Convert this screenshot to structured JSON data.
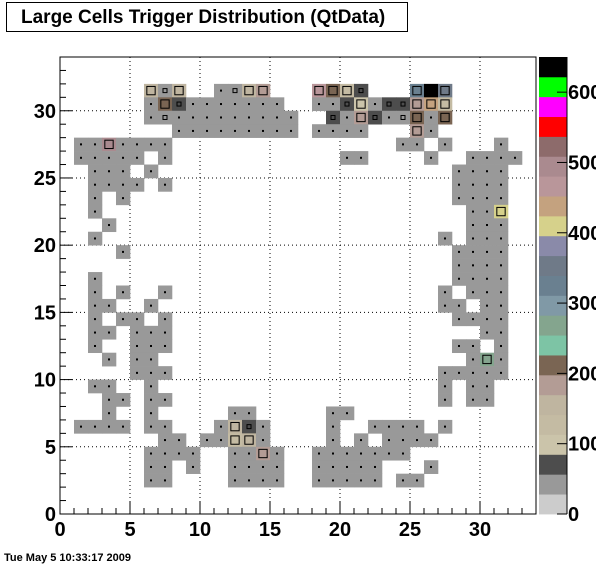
{
  "chart_data": {
    "type": "heatmap",
    "title": "Large Cells Trigger Distribution (QtData)",
    "xlim": [
      0,
      34
    ],
    "ylim": [
      0,
      34
    ],
    "x_ticks": [
      0,
      5,
      10,
      15,
      20,
      25,
      30
    ],
    "y_ticks": [
      0,
      5,
      10,
      15,
      20,
      25,
      30
    ],
    "z_ticks": [
      0,
      100,
      200,
      300,
      400,
      500,
      600
    ],
    "z_max": 650,
    "grid": true,
    "palette": [
      "#cccccc",
      "#999999",
      "#4d4d4d",
      "#cbc4aa",
      "#c4bba3",
      "#bfb5a0",
      "#b39c95",
      "#7a6553",
      "#7dc4a5",
      "#84a58e",
      "#8099a6",
      "#6a8090",
      "#6f7a88",
      "#8a8aa9",
      "#d6d18b",
      "#c4a27f",
      "#b9969a",
      "#aa8a8f",
      "#8d6b6b",
      "#ff0000",
      "#ff00ff",
      "#00ff00",
      "#000000"
    ],
    "cells": [
      [
        6,
        31,
        150
      ],
      [
        7,
        31,
        50
      ],
      [
        8,
        31,
        150
      ],
      [
        11,
        31,
        30
      ],
      [
        12,
        31,
        50
      ],
      [
        13,
        31,
        160
      ],
      [
        14,
        31,
        190
      ],
      [
        18,
        31,
        480
      ],
      [
        19,
        31,
        220
      ],
      [
        20,
        31,
        140
      ],
      [
        21,
        31,
        60
      ],
      [
        25,
        31,
        320
      ],
      [
        26,
        31,
        640
      ],
      [
        27,
        31,
        340
      ],
      [
        6,
        30,
        40
      ],
      [
        7,
        30,
        200
      ],
      [
        8,
        30,
        60
      ],
      [
        9,
        30,
        40
      ],
      [
        10,
        30,
        30
      ],
      [
        11,
        30,
        40
      ],
      [
        12,
        30,
        30
      ],
      [
        13,
        30,
        40
      ],
      [
        14,
        30,
        40
      ],
      [
        15,
        30,
        30
      ],
      [
        18,
        30,
        30
      ],
      [
        19,
        30,
        30
      ],
      [
        20,
        30,
        60
      ],
      [
        21,
        30,
        100
      ],
      [
        22,
        30,
        40
      ],
      [
        23,
        30,
        60
      ],
      [
        24,
        30,
        60
      ],
      [
        25,
        30,
        180
      ],
      [
        26,
        30,
        450
      ],
      [
        27,
        30,
        120
      ],
      [
        6,
        29,
        30
      ],
      [
        7,
        29,
        50
      ],
      [
        8,
        29,
        40
      ],
      [
        9,
        29,
        30
      ],
      [
        10,
        29,
        30
      ],
      [
        11,
        29,
        30
      ],
      [
        12,
        29,
        30
      ],
      [
        13,
        29,
        30
      ],
      [
        14,
        29,
        30
      ],
      [
        15,
        29,
        30
      ],
      [
        16,
        29,
        30
      ],
      [
        19,
        29,
        60
      ],
      [
        20,
        29,
        40
      ],
      [
        21,
        29,
        180
      ],
      [
        22,
        29,
        60
      ],
      [
        23,
        29,
        40
      ],
      [
        24,
        29,
        50
      ],
      [
        25,
        29,
        200
      ],
      [
        26,
        29,
        40
      ],
      [
        27,
        29,
        220
      ],
      [
        8,
        28,
        30
      ],
      [
        9,
        28,
        30
      ],
      [
        10,
        28,
        30
      ],
      [
        11,
        28,
        30
      ],
      [
        12,
        28,
        30
      ],
      [
        13,
        28,
        30
      ],
      [
        14,
        28,
        30
      ],
      [
        15,
        28,
        30
      ],
      [
        16,
        28,
        30
      ],
      [
        18,
        28,
        30
      ],
      [
        19,
        28,
        30
      ],
      [
        20,
        28,
        30
      ],
      [
        21,
        28,
        30
      ],
      [
        25,
        28,
        180
      ],
      [
        26,
        28,
        40
      ],
      [
        1,
        27,
        30
      ],
      [
        2,
        27,
        30
      ],
      [
        3,
        27,
        490
      ],
      [
        4,
        27,
        30
      ],
      [
        5,
        27,
        30
      ],
      [
        6,
        27,
        30
      ],
      [
        7,
        27,
        30
      ],
      [
        24,
        27,
        30
      ],
      [
        25,
        27,
        30
      ],
      [
        27,
        27,
        30
      ],
      [
        31,
        27,
        30
      ],
      [
        1,
        26,
        30
      ],
      [
        2,
        26,
        30
      ],
      [
        3,
        26,
        30
      ],
      [
        4,
        26,
        30
      ],
      [
        5,
        26,
        30
      ],
      [
        7,
        26,
        30
      ],
      [
        20,
        26,
        30
      ],
      [
        21,
        26,
        30
      ],
      [
        26,
        26,
        30
      ],
      [
        29,
        26,
        30
      ],
      [
        30,
        26,
        30
      ],
      [
        31,
        26,
        30
      ],
      [
        32,
        26,
        30
      ],
      [
        2,
        25,
        30
      ],
      [
        3,
        25,
        30
      ],
      [
        4,
        25,
        30
      ],
      [
        6,
        25,
        30
      ],
      [
        28,
        25,
        30
      ],
      [
        29,
        25,
        30
      ],
      [
        30,
        25,
        30
      ],
      [
        31,
        25,
        30
      ],
      [
        2,
        24,
        30
      ],
      [
        3,
        24,
        30
      ],
      [
        4,
        24,
        30
      ],
      [
        5,
        24,
        30
      ],
      [
        7,
        24,
        30
      ],
      [
        28,
        24,
        30
      ],
      [
        29,
        24,
        30
      ],
      [
        30,
        24,
        30
      ],
      [
        31,
        24,
        30
      ],
      [
        2,
        23,
        30
      ],
      [
        4,
        23,
        30
      ],
      [
        28,
        23,
        30
      ],
      [
        29,
        23,
        30
      ],
      [
        30,
        23,
        30
      ],
      [
        31,
        23,
        30
      ],
      [
        2,
        22,
        30
      ],
      [
        29,
        22,
        30
      ],
      [
        30,
        22,
        30
      ],
      [
        31,
        22,
        420
      ],
      [
        3,
        21,
        30
      ],
      [
        29,
        21,
        30
      ],
      [
        30,
        21,
        30
      ],
      [
        31,
        21,
        30
      ],
      [
        2,
        20,
        30
      ],
      [
        27,
        20,
        30
      ],
      [
        29,
        20,
        30
      ],
      [
        30,
        20,
        30
      ],
      [
        31,
        20,
        30
      ],
      [
        4,
        19,
        30
      ],
      [
        28,
        19,
        30
      ],
      [
        29,
        19,
        30
      ],
      [
        30,
        19,
        30
      ],
      [
        31,
        19,
        30
      ],
      [
        28,
        18,
        30
      ],
      [
        29,
        18,
        30
      ],
      [
        30,
        18,
        30
      ],
      [
        31,
        18,
        30
      ],
      [
        2,
        17,
        30
      ],
      [
        28,
        17,
        30
      ],
      [
        29,
        17,
        30
      ],
      [
        30,
        17,
        30
      ],
      [
        31,
        17,
        30
      ],
      [
        2,
        16,
        30
      ],
      [
        4,
        16,
        30
      ],
      [
        7,
        16,
        30
      ],
      [
        27,
        16,
        30
      ],
      [
        29,
        16,
        30
      ],
      [
        30,
        16,
        30
      ],
      [
        31,
        16,
        30
      ],
      [
        2,
        15,
        30
      ],
      [
        3,
        15,
        30
      ],
      [
        6,
        15,
        30
      ],
      [
        27,
        15,
        30
      ],
      [
        28,
        15,
        30
      ],
      [
        30,
        15,
        30
      ],
      [
        31,
        15,
        30
      ],
      [
        2,
        14,
        30
      ],
      [
        4,
        14,
        30
      ],
      [
        5,
        14,
        30
      ],
      [
        7,
        14,
        30
      ],
      [
        28,
        14,
        30
      ],
      [
        29,
        14,
        30
      ],
      [
        30,
        14,
        30
      ],
      [
        31,
        14,
        30
      ],
      [
        2,
        13,
        30
      ],
      [
        3,
        13,
        30
      ],
      [
        5,
        13,
        30
      ],
      [
        6,
        13,
        30
      ],
      [
        7,
        13,
        30
      ],
      [
        30,
        13,
        30
      ],
      [
        31,
        13,
        30
      ],
      [
        2,
        12,
        30
      ],
      [
        5,
        12,
        30
      ],
      [
        6,
        12,
        30
      ],
      [
        7,
        12,
        30
      ],
      [
        28,
        12,
        30
      ],
      [
        29,
        12,
        30
      ],
      [
        31,
        12,
        30
      ],
      [
        3,
        11,
        30
      ],
      [
        5,
        11,
        30
      ],
      [
        6,
        11,
        30
      ],
      [
        29,
        11,
        30
      ],
      [
        30,
        11,
        280
      ],
      [
        31,
        11,
        30
      ],
      [
        5,
        10,
        30
      ],
      [
        6,
        10,
        30
      ],
      [
        7,
        10,
        30
      ],
      [
        27,
        10,
        30
      ],
      [
        28,
        10,
        30
      ],
      [
        29,
        10,
        30
      ],
      [
        30,
        10,
        30
      ],
      [
        31,
        10,
        30
      ],
      [
        2,
        9,
        30
      ],
      [
        3,
        9,
        30
      ],
      [
        6,
        9,
        30
      ],
      [
        27,
        9,
        30
      ],
      [
        29,
        9,
        30
      ],
      [
        30,
        9,
        30
      ],
      [
        3,
        8,
        30
      ],
      [
        4,
        8,
        30
      ],
      [
        6,
        8,
        30
      ],
      [
        7,
        8,
        30
      ],
      [
        27,
        8,
        30
      ],
      [
        29,
        8,
        30
      ],
      [
        30,
        8,
        30
      ],
      [
        3,
        7,
        30
      ],
      [
        6,
        7,
        30
      ],
      [
        12,
        7,
        30
      ],
      [
        13,
        7,
        30
      ],
      [
        19,
        7,
        30
      ],
      [
        20,
        7,
        30
      ],
      [
        1,
        6,
        30
      ],
      [
        2,
        6,
        30
      ],
      [
        3,
        6,
        30
      ],
      [
        4,
        6,
        30
      ],
      [
        6,
        6,
        30
      ],
      [
        7,
        6,
        30
      ],
      [
        11,
        6,
        30
      ],
      [
        12,
        6,
        150
      ],
      [
        13,
        6,
        60
      ],
      [
        14,
        6,
        30
      ],
      [
        19,
        6,
        30
      ],
      [
        22,
        6,
        30
      ],
      [
        23,
        6,
        30
      ],
      [
        24,
        6,
        30
      ],
      [
        25,
        6,
        30
      ],
      [
        27,
        6,
        30
      ],
      [
        7,
        5,
        30
      ],
      [
        8,
        5,
        30
      ],
      [
        10,
        5,
        30
      ],
      [
        11,
        5,
        30
      ],
      [
        12,
        5,
        140
      ],
      [
        13,
        5,
        160
      ],
      [
        14,
        5,
        40
      ],
      [
        19,
        5,
        30
      ],
      [
        21,
        5,
        30
      ],
      [
        23,
        5,
        30
      ],
      [
        24,
        5,
        30
      ],
      [
        25,
        5,
        30
      ],
      [
        26,
        5,
        30
      ],
      [
        6,
        4,
        30
      ],
      [
        7,
        4,
        30
      ],
      [
        8,
        4,
        30
      ],
      [
        9,
        4,
        30
      ],
      [
        12,
        4,
        30
      ],
      [
        13,
        4,
        30
      ],
      [
        14,
        4,
        170
      ],
      [
        15,
        4,
        30
      ],
      [
        18,
        4,
        30
      ],
      [
        19,
        4,
        30
      ],
      [
        20,
        4,
        30
      ],
      [
        21,
        4,
        30
      ],
      [
        22,
        4,
        30
      ],
      [
        23,
        4,
        30
      ],
      [
        24,
        4,
        30
      ],
      [
        6,
        3,
        30
      ],
      [
        7,
        3,
        30
      ],
      [
        9,
        3,
        30
      ],
      [
        12,
        3,
        30
      ],
      [
        13,
        3,
        30
      ],
      [
        14,
        3,
        30
      ],
      [
        15,
        3,
        30
      ],
      [
        18,
        3,
        30
      ],
      [
        19,
        3,
        30
      ],
      [
        20,
        3,
        30
      ],
      [
        21,
        3,
        30
      ],
      [
        22,
        3,
        30
      ],
      [
        26,
        3,
        30
      ],
      [
        6,
        2,
        30
      ],
      [
        7,
        2,
        30
      ],
      [
        12,
        2,
        30
      ],
      [
        13,
        2,
        30
      ],
      [
        14,
        2,
        30
      ],
      [
        15,
        2,
        30
      ],
      [
        18,
        2,
        30
      ],
      [
        19,
        2,
        30
      ],
      [
        20,
        2,
        30
      ],
      [
        21,
        2,
        30
      ],
      [
        22,
        2,
        30
      ],
      [
        24,
        2,
        30
      ],
      [
        25,
        2,
        30
      ]
    ]
  },
  "timestamp": "Tue May  5 10:33:17 2009"
}
